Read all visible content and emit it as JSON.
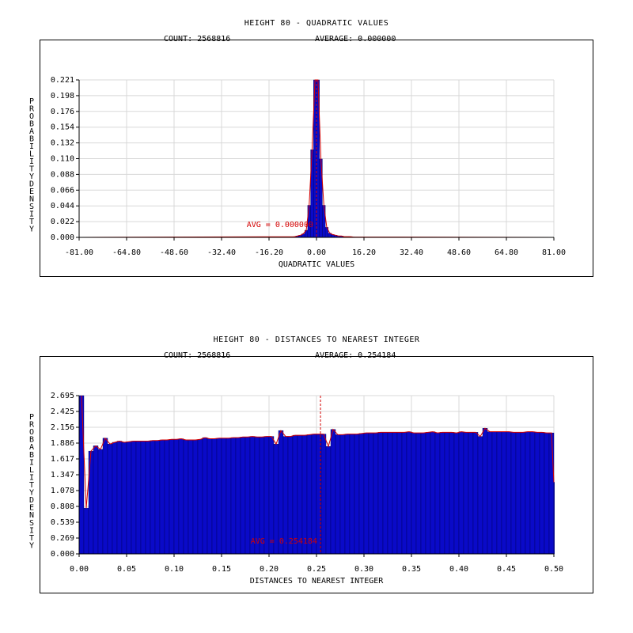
{
  "colors": {
    "bar": "#0a0ac8",
    "bar_edge": "#00005a",
    "curve": "#d40000",
    "grid": "#d8d8d8",
    "axis": "#000000"
  },
  "chart1": {
    "title": "HEIGHT 80 - QUADRATIC VALUES",
    "count_text": "COUNT: 2568816",
    "average_text": "AVERAGE: 0.000000",
    "avg_label": "AVG = 0.000000",
    "xlabel": "QUADRATIC VALUES",
    "ylabel": "PROBABILITY DENSITY",
    "xticks": [
      "-81.00",
      "-64.80",
      "-48.60",
      "-32.40",
      "-16.20",
      "0.00",
      "16.20",
      "32.40",
      "48.60",
      "64.80",
      "81.00"
    ],
    "yticks": [
      "0.000",
      "0.022",
      "0.044",
      "0.066",
      "0.088",
      "0.110",
      "0.132",
      "0.154",
      "0.176",
      "0.198",
      "0.221"
    ]
  },
  "chart2": {
    "title": "HEIGHT 80 - DISTANCES TO NEAREST INTEGER",
    "count_text": "COUNT: 2568816",
    "average_text": "AVERAGE: 0.254184",
    "avg_label": "AVG = 0.254184",
    "xlabel": "DISTANCES TO NEAREST INTEGER",
    "ylabel": "PROBABILITY DENSITY",
    "xticks": [
      "0.00",
      "0.05",
      "0.10",
      "0.15",
      "0.20",
      "0.25",
      "0.30",
      "0.35",
      "0.40",
      "0.45",
      "0.50"
    ],
    "yticks": [
      "0.000",
      "0.269",
      "0.539",
      "0.808",
      "1.078",
      "1.347",
      "1.617",
      "1.886",
      "2.156",
      "2.425",
      "2.695"
    ]
  },
  "chart_data": [
    {
      "type": "bar",
      "title": "HEIGHT 80 - QUADRATIC VALUES",
      "xlabel": "QUADRATIC VALUES",
      "ylabel": "PROBABILITY DENSITY",
      "xlim": [
        -81,
        81
      ],
      "ylim": [
        0,
        0.221
      ],
      "grid": true,
      "average": 0.0,
      "count": 2568816,
      "x": [
        -7.5,
        -6.5,
        -5.5,
        -4.5,
        -3.5,
        -2.5,
        -1.5,
        -0.5,
        0.5,
        1.5,
        2.5,
        3.5,
        4.5,
        5.5,
        6.5,
        7.5,
        8.5,
        9.5,
        10.5,
        11.5,
        12.5
      ],
      "values": [
        0.001,
        0.002,
        0.003,
        0.005,
        0.01,
        0.045,
        0.123,
        0.221,
        0.221,
        0.11,
        0.045,
        0.014,
        0.006,
        0.004,
        0.003,
        0.002,
        0.002,
        0.001,
        0.001,
        0.001,
        0.0005
      ]
    },
    {
      "type": "bar",
      "title": "HEIGHT 80 - DISTANCES TO NEAREST INTEGER",
      "xlabel": "DISTANCES TO NEAREST INTEGER",
      "ylabel": "PROBABILITY DENSITY",
      "xlim": [
        0,
        0.5
      ],
      "ylim": [
        0,
        2.695
      ],
      "grid": true,
      "average": 0.254184,
      "count": 2568816,
      "bin_width": 0.005,
      "values": [
        2.695,
        0.78,
        1.75,
        1.84,
        1.78,
        1.97,
        1.87,
        1.9,
        1.92,
        1.9,
        1.91,
        1.92,
        1.92,
        1.92,
        1.92,
        1.93,
        1.93,
        1.94,
        1.94,
        1.95,
        1.95,
        1.96,
        1.94,
        1.94,
        1.94,
        1.95,
        1.98,
        1.96,
        1.96,
        1.97,
        1.97,
        1.97,
        1.98,
        1.98,
        1.99,
        1.99,
        2.0,
        1.99,
        1.99,
        2.0,
        2.0,
        1.87,
        2.1,
        2.0,
        2.0,
        2.02,
        2.02,
        2.02,
        2.03,
        2.04,
        2.04,
        2.04,
        1.83,
        2.12,
        2.03,
        2.03,
        2.04,
        2.04,
        2.04,
        2.05,
        2.06,
        2.06,
        2.06,
        2.07,
        2.07,
        2.07,
        2.07,
        2.07,
        2.07,
        2.08,
        2.06,
        2.06,
        2.06,
        2.07,
        2.08,
        2.06,
        2.07,
        2.07,
        2.07,
        2.06,
        2.08,
        2.07,
        2.07,
        2.07,
        2.0,
        2.14,
        2.08,
        2.08,
        2.08,
        2.08,
        2.08,
        2.07,
        2.07,
        2.07,
        2.08,
        2.08,
        2.07,
        2.07,
        2.06,
        2.06,
        1.22
      ]
    }
  ]
}
